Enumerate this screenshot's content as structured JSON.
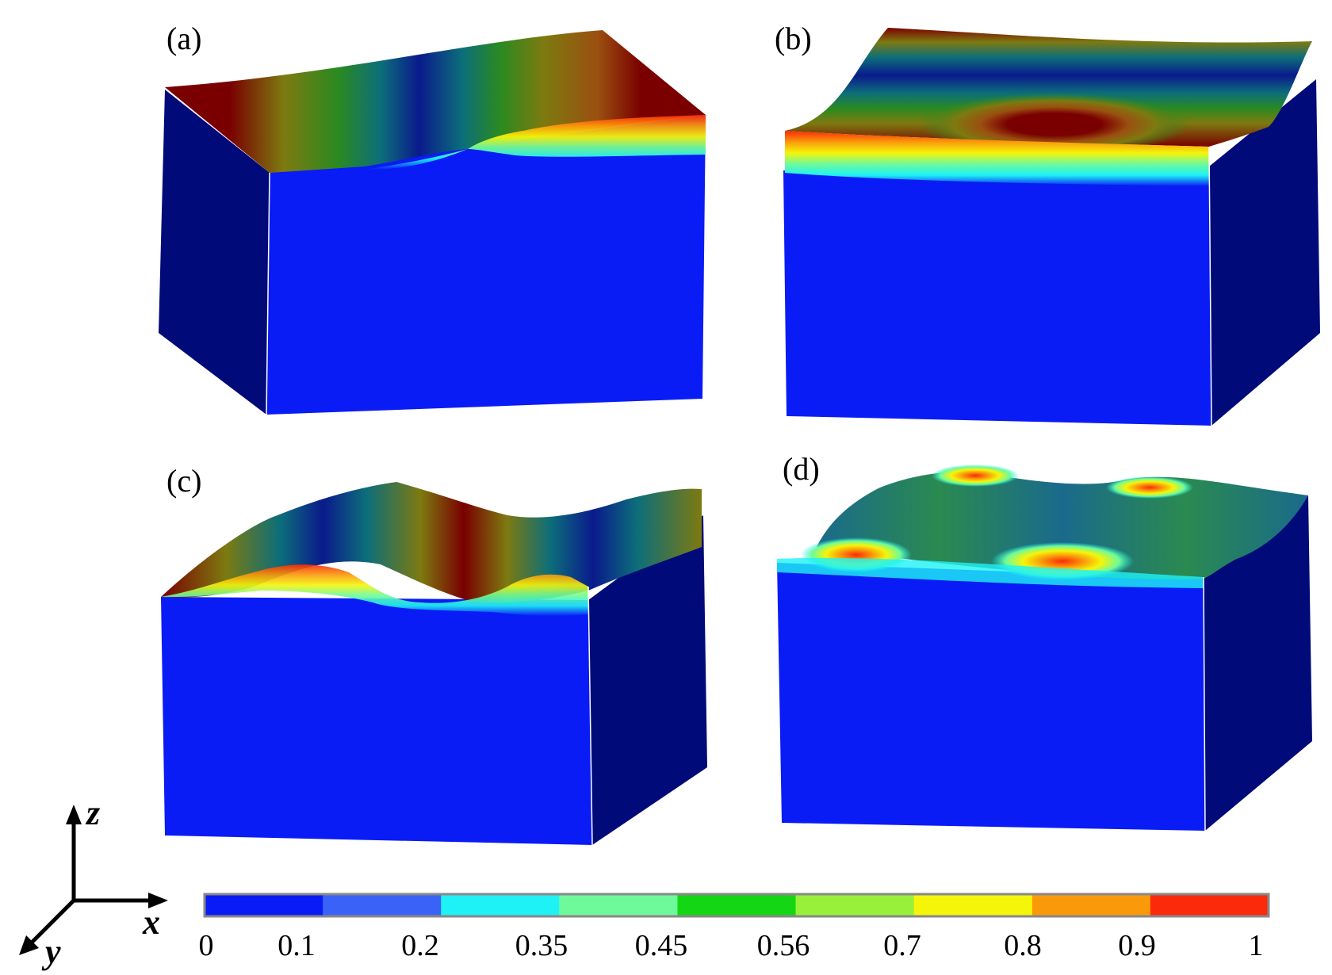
{
  "panels": [
    {
      "id": "a",
      "label": "(a)"
    },
    {
      "id": "b",
      "label": "(b)"
    },
    {
      "id": "c",
      "label": "(c)"
    },
    {
      "id": "d",
      "label": "(d)"
    }
  ],
  "axes": {
    "x": "x",
    "y": "y",
    "z": "z"
  },
  "colorbar": {
    "ticks": [
      "0",
      "0.1",
      "0.2",
      "0.35",
      "0.45",
      "0.56",
      "0.7",
      "0.8",
      "0.9",
      "1"
    ],
    "colors": [
      "#0a1cf5",
      "#3a62f7",
      "#1ef2f5",
      "#6efa9a",
      "#14d614",
      "#99f03a",
      "#f5f50a",
      "#fa9a0a",
      "#fa2a0a"
    ]
  },
  "colors": {
    "block_front": "#0a1cf5",
    "block_side": "#000a78",
    "deep_red": "#7a0000",
    "olive": "#7d7a10",
    "navy": "#0a1a8c",
    "teal": "#0c6e7a"
  }
}
